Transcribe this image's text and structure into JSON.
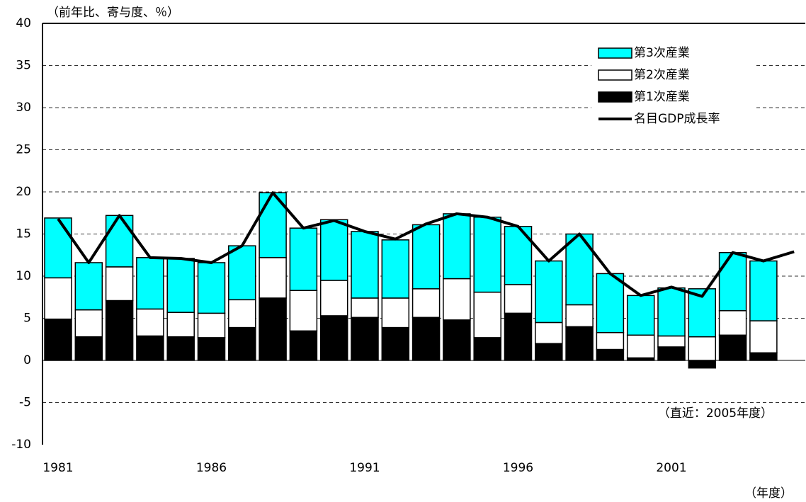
{
  "chart_data": {
    "type": "bar",
    "stacked": true,
    "y_label": "（前年比、寄与度、％）",
    "x_label": "（年度）",
    "annotation": "（直近：2005年度）",
    "categories": [
      "1981",
      null,
      null,
      null,
      null,
      "1986",
      null,
      null,
      null,
      null,
      "1991",
      null,
      null,
      null,
      null,
      "1996",
      null,
      null,
      null,
      null,
      "2001",
      null,
      null,
      null,
      null
    ],
    "series": [
      {
        "name": "第1次産業",
        "type": "bar",
        "color": "#000000",
        "values": [
          4.9,
          2.8,
          7.1,
          2.9,
          2.8,
          2.7,
          3.9,
          7.4,
          3.5,
          5.3,
          5.1,
          3.9,
          5.1,
          4.8,
          2.7,
          5.6,
          2.0,
          4.0,
          1.3,
          0.3,
          1.6,
          -0.9,
          3.0,
          0.9,
          null
        ]
      },
      {
        "name": "第2次産業",
        "type": "bar",
        "color": "#ffffff",
        "values": [
          4.9,
          3.2,
          4.0,
          3.2,
          2.9,
          2.9,
          3.3,
          4.8,
          4.8,
          4.2,
          2.3,
          3.5,
          3.4,
          4.9,
          5.4,
          3.4,
          2.5,
          2.6,
          2.0,
          2.7,
          1.3,
          2.8,
          2.9,
          3.8,
          null
        ]
      },
      {
        "name": "第3次産業",
        "type": "bar",
        "color": "#00ffff",
        "values": [
          7.1,
          5.6,
          6.1,
          6.1,
          6.4,
          6.0,
          6.4,
          7.7,
          7.4,
          7.2,
          7.9,
          6.9,
          7.6,
          7.7,
          8.9,
          6.9,
          7.3,
          8.4,
          7.0,
          4.7,
          5.7,
          5.7,
          6.9,
          7.1,
          null
        ]
      },
      {
        "name": "名目GDP成長率",
        "type": "line",
        "color": "#000000",
        "values": [
          16.8,
          11.6,
          17.2,
          12.2,
          12.1,
          11.6,
          13.6,
          19.9,
          15.7,
          16.6,
          15.3,
          14.4,
          16.2,
          17.4,
          17.0,
          15.9,
          11.8,
          15.0,
          10.3,
          7.7,
          8.7,
          7.6,
          12.8,
          11.8,
          12.9
        ]
      }
    ],
    "ylim": [
      -10,
      40
    ],
    "yticks": [
      -10,
      -5,
      0,
      5,
      10,
      15,
      20,
      25,
      30,
      35,
      40
    ],
    "grid": true,
    "legend": "upper right"
  }
}
